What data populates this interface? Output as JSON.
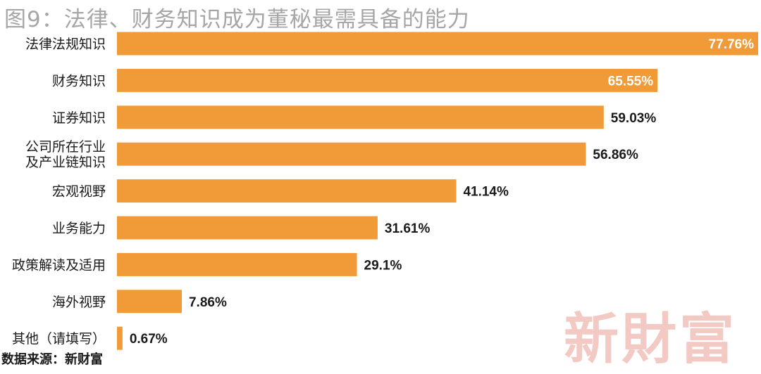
{
  "title": "图9：法律、财务知识成为董秘最需具备的能力",
  "source": "数据来源：新财富",
  "watermark": "新財富",
  "colors": {
    "bar": "#f19b38",
    "value_inside": "#ffffff",
    "value_outside": "#1a1a1a",
    "title": "#a6a6a6"
  },
  "chart_data": {
    "type": "bar",
    "orientation": "horizontal",
    "title": "图9：法律、财务知识成为董秘最需具备的能力",
    "categories": [
      [
        "法律法规知识"
      ],
      [
        "财务知识"
      ],
      [
        "证券知识"
      ],
      [
        "公司所在行业",
        "及产业链知识"
      ],
      [
        "宏观视野"
      ],
      [
        "业务能力"
      ],
      [
        "政策解读及适用"
      ],
      [
        "海外视野"
      ],
      [
        "其他（请填写）"
      ]
    ],
    "values": [
      77.76,
      65.55,
      59.03,
      56.86,
      41.14,
      31.61,
      29.1,
      7.86,
      0.67
    ],
    "value_labels": [
      "77.76%",
      "65.55%",
      "59.03%",
      "56.86%",
      "41.14%",
      "31.61%",
      "29.1%",
      "7.86%",
      "0.67%"
    ],
    "value_label_inside": [
      true,
      true,
      false,
      false,
      false,
      false,
      false,
      false,
      false
    ],
    "xlim": [
      0,
      77.76
    ],
    "grid": false,
    "legend": "none"
  }
}
